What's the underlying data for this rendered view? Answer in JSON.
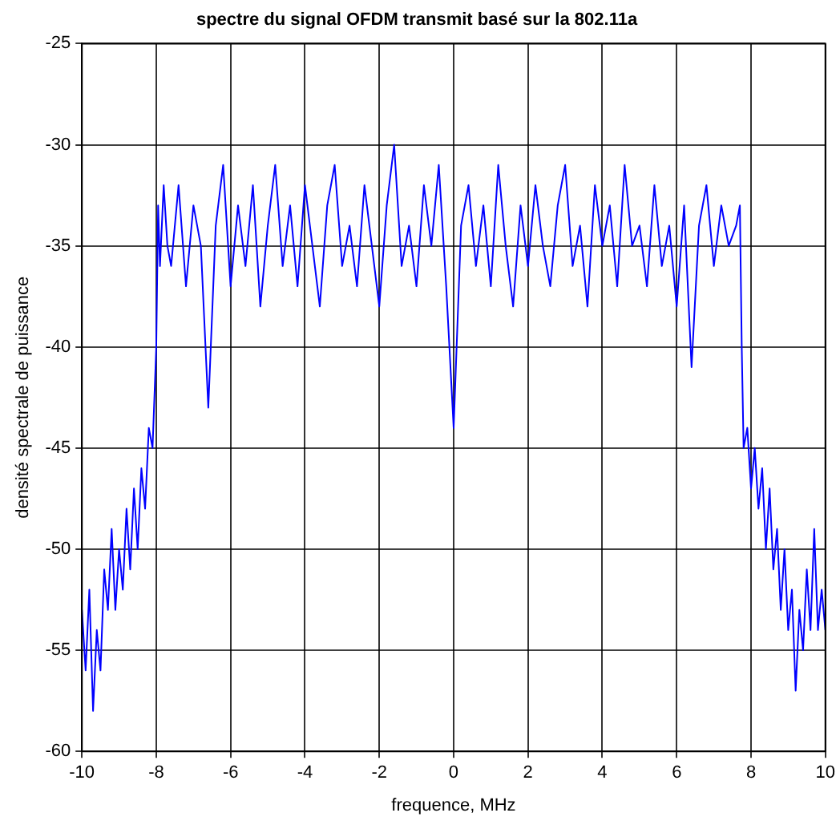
{
  "chart_data": {
    "type": "line",
    "title": "spectre du signal OFDM transmit basé sur la 802.11a",
    "xlabel": "frequence, MHz",
    "ylabel": "densité spectrale de puissance",
    "xlim": [
      -10,
      10
    ],
    "xticks": [
      -10,
      -8,
      -6,
      -4,
      -2,
      0,
      2,
      4,
      6,
      8,
      10
    ],
    "ylim": [
      -60,
      -25
    ],
    "yticks": [
      -60,
      -55,
      -50,
      -45,
      -40,
      -35,
      -30,
      -25
    ],
    "grid": true,
    "line_style": "solid",
    "series": [
      {
        "color": "#0000ff",
        "x": [
          -10,
          -9.9,
          -9.8,
          -9.7,
          -9.6,
          -9.5,
          -9.4,
          -9.3,
          -9.2,
          -9.1,
          -9.0,
          -8.9,
          -8.8,
          -8.7,
          -8.6,
          -8.5,
          -8.4,
          -8.3,
          -8.2,
          -8.1,
          -8.0,
          -7.95,
          -7.9,
          -7.8,
          -7.7,
          -7.6,
          -7.4,
          -7.2,
          -7.0,
          -6.8,
          -6.6,
          -6.4,
          -6.2,
          -6.0,
          -5.8,
          -5.6,
          -5.4,
          -5.2,
          -5.0,
          -4.8,
          -4.6,
          -4.4,
          -4.2,
          -4.0,
          -3.8,
          -3.6,
          -3.4,
          -3.2,
          -3.0,
          -2.8,
          -2.6,
          -2.4,
          -2.2,
          -2.0,
          -1.8,
          -1.6,
          -1.4,
          -1.2,
          -1.0,
          -0.8,
          -0.6,
          -0.4,
          -0.2,
          0.0,
          0.2,
          0.4,
          0.6,
          0.8,
          1.0,
          1.2,
          1.4,
          1.6,
          1.8,
          2.0,
          2.2,
          2.4,
          2.6,
          2.8,
          3.0,
          3.2,
          3.4,
          3.6,
          3.8,
          4.0,
          4.2,
          4.4,
          4.6,
          4.8,
          5.0,
          5.2,
          5.4,
          5.6,
          5.8,
          6.0,
          6.2,
          6.4,
          6.6,
          6.8,
          7.0,
          7.2,
          7.4,
          7.6,
          7.7,
          7.75,
          7.8,
          7.9,
          8.0,
          8.1,
          8.2,
          8.3,
          8.4,
          8.5,
          8.6,
          8.7,
          8.8,
          8.9,
          9.0,
          9.1,
          9.2,
          9.3,
          9.4,
          9.5,
          9.6,
          9.7,
          9.8,
          9.9,
          10
        ],
        "values": [
          -53,
          -56,
          -52,
          -58,
          -54,
          -56,
          -51,
          -53,
          -49,
          -53,
          -50,
          -52,
          -48,
          -51,
          -47,
          -50,
          -46,
          -48,
          -44,
          -45,
          -40,
          -33,
          -36,
          -32,
          -35,
          -36,
          -32,
          -37,
          -33,
          -35,
          -43,
          -34,
          -31,
          -37,
          -33,
          -36,
          -32,
          -38,
          -34,
          -31,
          -36,
          -33,
          -37,
          -32,
          -35,
          -38,
          -33,
          -31,
          -36,
          -34,
          -37,
          -32,
          -35,
          -38,
          -33,
          -30,
          -36,
          -34,
          -37,
          -32,
          -35,
          -31,
          -37,
          -44,
          -34,
          -32,
          -36,
          -33,
          -37,
          -31,
          -35,
          -38,
          -33,
          -36,
          -32,
          -35,
          -37,
          -33,
          -31,
          -36,
          -34,
          -38,
          -32,
          -35,
          -33,
          -37,
          -31,
          -35,
          -34,
          -37,
          -32,
          -36,
          -34,
          -38,
          -33,
          -41,
          -34,
          -32,
          -36,
          -33,
          -35,
          -34,
          -33,
          -40,
          -45,
          -44,
          -47,
          -45,
          -48,
          -46,
          -50,
          -47,
          -51,
          -49,
          -53,
          -50,
          -54,
          -52,
          -57,
          -53,
          -55,
          -51,
          -54,
          -49,
          -54,
          -52,
          -54
        ]
      }
    ]
  }
}
